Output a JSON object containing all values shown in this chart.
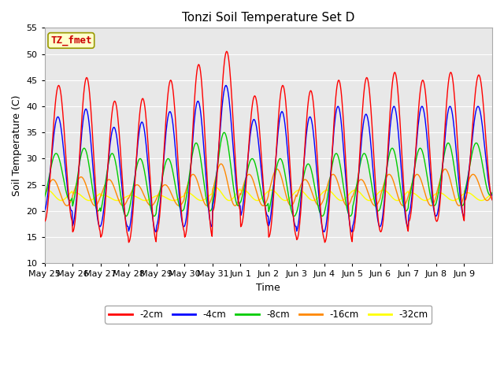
{
  "title": "Tonzi Soil Temperature Set D",
  "xlabel": "Time",
  "ylabel": "Soil Temperature (C)",
  "ylim": [
    10,
    55
  ],
  "yticks": [
    10,
    15,
    20,
    25,
    30,
    35,
    40,
    45,
    50,
    55
  ],
  "xtick_labels": [
    "May 25",
    "May 26",
    "May 27",
    "May 28",
    "May 29",
    "May 30",
    "May 31",
    "Jun 1",
    "Jun 2",
    "Jun 3",
    "Jun 4",
    "Jun 5",
    "Jun 6",
    "Jun 7",
    "Jun 8",
    "Jun 9"
  ],
  "annotation_text": "TZ_fmet",
  "annotation_color": "#CC0000",
  "annotation_bg": "#FFFFCC",
  "annotation_border": "#999900",
  "line_colors": {
    "-2cm": "#FF0000",
    "-4cm": "#0000FF",
    "-8cm": "#00CC00",
    "-16cm": "#FF8800",
    "-32cm": "#FFFF00"
  },
  "bg_color": "#E8E8E8",
  "grid_color": "#FFFFFF",
  "peak_heights_2cm": [
    44,
    45.5,
    41,
    41.5,
    45,
    48,
    50.5,
    42,
    44,
    43,
    45,
    45.5,
    46.5,
    45,
    46.5,
    46
  ],
  "trough_heights_2cm": [
    18,
    16,
    15,
    14,
    16,
    15,
    20,
    17,
    15,
    14.5,
    14,
    16,
    16,
    18,
    18,
    22
  ],
  "peak_heights_4cm": [
    38,
    39.5,
    36,
    37,
    39,
    41,
    44,
    37.5,
    39,
    38,
    40,
    38.5,
    40,
    40,
    40,
    40
  ],
  "trough_heights_4cm": [
    20,
    17,
    17,
    16,
    17,
    17,
    21,
    19,
    17,
    16,
    16,
    17,
    17,
    19,
    19,
    23
  ],
  "peak_heights_8cm": [
    31,
    32,
    31,
    30,
    30,
    33,
    35,
    30,
    30,
    29,
    31,
    31,
    32,
    32,
    33,
    33
  ],
  "trough_heights_8cm": [
    22,
    20,
    19,
    19,
    20,
    20,
    21,
    21,
    19,
    19,
    19,
    20,
    20,
    21,
    21,
    23
  ],
  "peak_heights_16cm": [
    26,
    26.5,
    26,
    25,
    25,
    27,
    29,
    27,
    28,
    26,
    27,
    26,
    27,
    27,
    28,
    27
  ],
  "trough_heights_16cm": [
    21,
    21,
    21,
    21,
    21,
    21,
    21,
    21,
    21,
    21,
    21,
    21,
    21,
    21,
    21,
    22
  ],
  "peak_heights_32cm": [
    24,
    23.5,
    23,
    23,
    23,
    23.5,
    24.5,
    24,
    24,
    24,
    24,
    24,
    24,
    23.5,
    23.5,
    23.5
  ],
  "trough_heights_32cm": [
    22,
    22,
    22,
    22,
    22,
    22,
    22,
    22,
    22,
    22,
    22,
    22,
    22,
    22,
    22,
    22
  ],
  "phase_lag_2cm": -1.5707963,
  "phase_lag_4cm": -1.4,
  "phase_lag_8cm": -1.0,
  "phase_lag_16cm": -0.3,
  "phase_lag_32cm": 1.0
}
